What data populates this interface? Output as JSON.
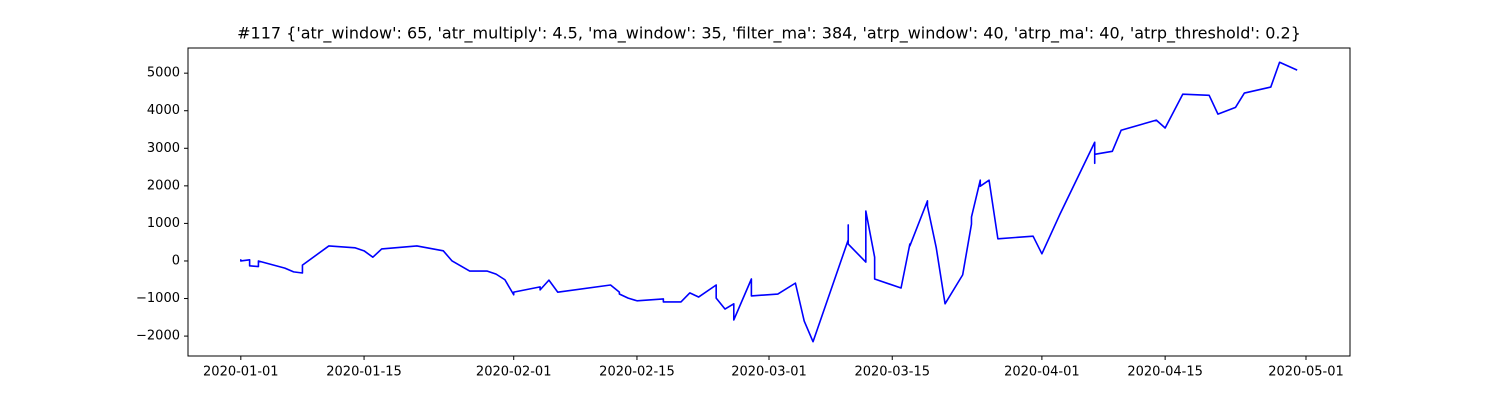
{
  "chart_data": {
    "type": "line",
    "title": "#117 {'atr_window': 65, 'atr_multiply': 4.5, 'ma_window': 35, 'filter_ma': 384, 'atrp_window': 40, 'atrp_ma': 40, 'atrp_threshold': 0.2}",
    "color": "#0000ff",
    "x": [
      "2020-01-01",
      "2020-01-01",
      "2020-01-01",
      "2020-01-02",
      "2020-01-02",
      "2020-01-03",
      "2020-01-03",
      "2020-01-06",
      "2020-01-07",
      "2020-01-08",
      "2020-01-08",
      "2020-01-11",
      "2020-01-14",
      "2020-01-15",
      "2020-01-16",
      "2020-01-17",
      "2020-01-21",
      "2020-01-24",
      "2020-01-25",
      "2020-01-27",
      "2020-01-29",
      "2020-01-30",
      "2020-01-31",
      "2020-02-01",
      "2020-02-01",
      "2020-02-04",
      "2020-02-04",
      "2020-02-05",
      "2020-02-06",
      "2020-02-12",
      "2020-02-13",
      "2020-02-13",
      "2020-02-14",
      "2020-02-15",
      "2020-02-18",
      "2020-02-18",
      "2020-02-20",
      "2020-02-21",
      "2020-02-22",
      "2020-02-24",
      "2020-02-24",
      "2020-02-25",
      "2020-02-26",
      "2020-02-26",
      "2020-02-28",
      "2020-02-28",
      "2020-03-02",
      "2020-03-04",
      "2020-03-05",
      "2020-03-06",
      "2020-03-10",
      "2020-03-10",
      "2020-03-10",
      "2020-03-12",
      "2020-03-12",
      "2020-03-13",
      "2020-03-13",
      "2020-03-16",
      "2020-03-17",
      "2020-03-17",
      "2020-03-19",
      "2020-03-19",
      "2020-03-20",
      "2020-03-21",
      "2020-03-23",
      "2020-03-24",
      "2020-03-24",
      "2020-03-25",
      "2020-03-25",
      "2020-03-26",
      "2020-03-27",
      "2020-03-31",
      "2020-04-01",
      "2020-04-03",
      "2020-04-07",
      "2020-04-07",
      "2020-04-07",
      "2020-04-09",
      "2020-04-10",
      "2020-04-14",
      "2020-04-15",
      "2020-04-17",
      "2020-04-20",
      "2020-04-21",
      "2020-04-23",
      "2020-04-24",
      "2020-04-27",
      "2020-04-28",
      "2020-04-30"
    ],
    "values": [
      0,
      30,
      0,
      30,
      -130,
      -150,
      0,
      -190,
      -290,
      -320,
      -110,
      400,
      350,
      270,
      100,
      320,
      400,
      270,
      0,
      -270,
      -270,
      -350,
      -500,
      -900,
      -830,
      -690,
      -770,
      -510,
      -830,
      -640,
      -830,
      -880,
      -990,
      -1060,
      -1010,
      -1090,
      -1090,
      -850,
      -960,
      -640,
      -990,
      -1280,
      -1140,
      -1570,
      -480,
      -930,
      -880,
      -590,
      -1600,
      -2150,
      560,
      960,
      450,
      -30,
      1330,
      100,
      -480,
      -720,
      450,
      400,
      1600,
      1460,
      350,
      -1140,
      -370,
      980,
      1170,
      2150,
      1990,
      2150,
      590,
      660,
      190,
      1220,
      3160,
      2600,
      2840,
      2920,
      3480,
      3750,
      3540,
      4440,
      4410,
      3910,
      4090,
      4470,
      4630,
      5290,
      5080
    ],
    "xlim": [
      "2019-12-26",
      "2020-05-06"
    ],
    "xticks": [
      "2020-01-01",
      "2020-01-15",
      "2020-02-01",
      "2020-02-15",
      "2020-03-01",
      "2020-03-15",
      "2020-04-01",
      "2020-04-15",
      "2020-05-01"
    ],
    "ylim": [
      -2530,
      5670
    ],
    "yticks": [
      {
        "value": -2000,
        "label": "−2000"
      },
      {
        "value": -1000,
        "label": "−1000"
      },
      0,
      1000,
      2000,
      3000,
      4000,
      5000
    ],
    "grid": false
  }
}
